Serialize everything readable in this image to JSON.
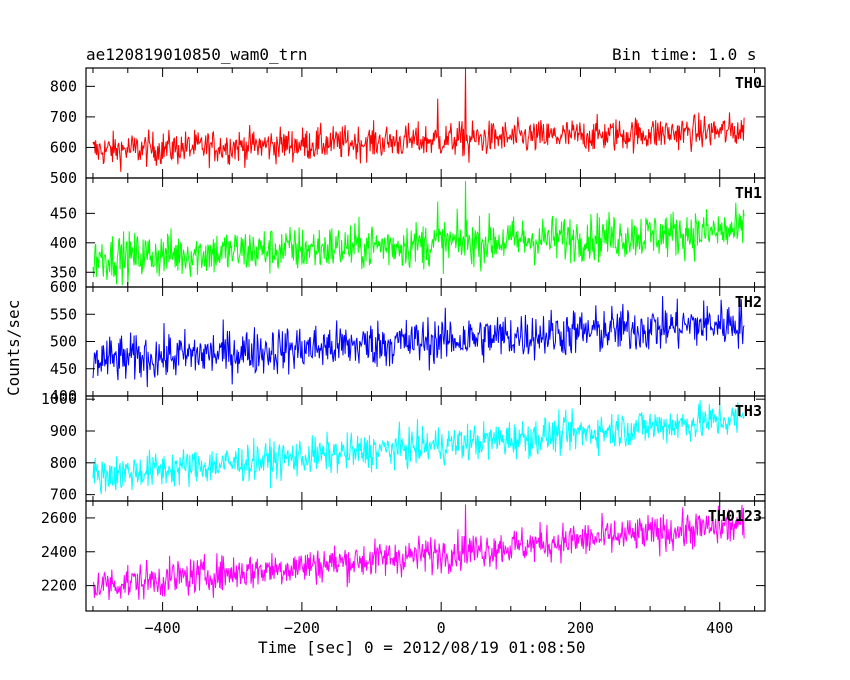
{
  "header": {
    "title": "ae120819010850_wam0_trn",
    "bin_time": "Bin time: 1.0 s"
  },
  "chart_data": {
    "type": "line",
    "xlabel": "Time [sec] 0 = 2012/08/19 01:08:50",
    "ylabel": "Counts/sec",
    "xlim": [
      -510,
      465
    ],
    "x_ticks": [
      -400,
      -200,
      0,
      200,
      400
    ],
    "x_range": [
      -500,
      435
    ],
    "x_step": 1,
    "panels": [
      {
        "name": "TH0",
        "color": "#ff0000",
        "ylim": [
          500,
          860
        ],
        "y_ticks": [
          500,
          600,
          700,
          800
        ],
        "start": 590,
        "end": 655,
        "noise": 28,
        "spikes": [
          [
            -5,
            760
          ],
          [
            35,
            860
          ],
          [
            40,
            550
          ]
        ]
      },
      {
        "name": "TH1",
        "color": "#00ff00",
        "ylim": [
          325,
          510
        ],
        "y_ticks": [
          350,
          400,
          450
        ],
        "start": 375,
        "end": 420,
        "noise": 20,
        "spikes": [
          [
            -5,
            470
          ],
          [
            35,
            505
          ]
        ]
      },
      {
        "name": "TH2",
        "color": "#0000ff",
        "ylim": [
          400,
          600
        ],
        "y_ticks": [
          400,
          450,
          500,
          550,
          600
        ],
        "start": 465,
        "end": 535,
        "noise": 22,
        "spikes": []
      },
      {
        "name": "TH3",
        "color": "#00ffff",
        "ylim": [
          680,
          1010
        ],
        "y_ticks": [
          700,
          800,
          900,
          1000
        ],
        "start": 760,
        "end": 940,
        "noise": 30,
        "spikes": []
      },
      {
        "name": "TH0123",
        "color": "#ff00ff",
        "ylim": [
          2050,
          2700
        ],
        "y_ticks": [
          2200,
          2400,
          2600
        ],
        "start": 2200,
        "end": 2560,
        "noise": 55,
        "spikes": [
          [
            35,
            2680
          ]
        ]
      }
    ]
  }
}
